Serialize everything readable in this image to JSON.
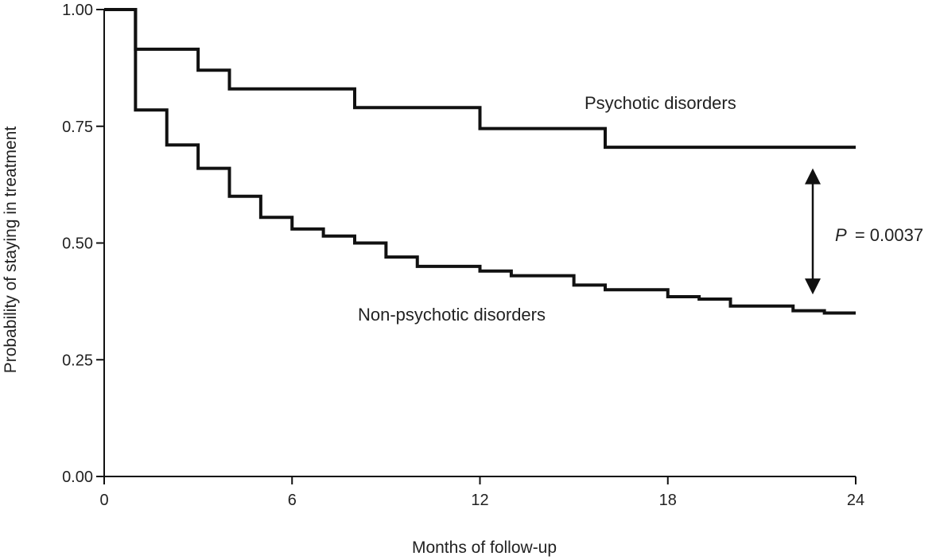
{
  "chart_data": {
    "type": "line",
    "title": "",
    "xlabel": "Months of follow-up",
    "ylabel": "Probability of staying in treatment",
    "xlim": [
      0,
      24
    ],
    "ylim": [
      0,
      1
    ],
    "x_ticks": [
      0,
      6,
      12,
      18,
      24
    ],
    "x_tick_labels": [
      "0",
      "6",
      "12",
      "18",
      "24"
    ],
    "y_ticks": [
      0,
      0.25,
      0.5,
      0.75,
      1
    ],
    "y_tick_labels": [
      "0.00",
      "0.25",
      "0.50",
      "0.75",
      "1.00"
    ],
    "grid": false,
    "step": true,
    "series": [
      {
        "name": "Psychotic disorders",
        "x": [
          0,
          1,
          3,
          4,
          8,
          12,
          16,
          24
        ],
        "y": [
          1.0,
          0.915,
          0.87,
          0.83,
          0.79,
          0.745,
          0.705,
          0.705
        ]
      },
      {
        "name": "Non-psychotic disorders",
        "x": [
          0,
          1,
          2,
          3,
          4,
          5,
          6,
          7,
          8,
          9,
          10,
          12,
          13,
          15,
          16,
          18,
          19,
          20,
          22,
          23,
          24
        ],
        "y": [
          1.0,
          0.785,
          0.71,
          0.66,
          0.6,
          0.555,
          0.53,
          0.515,
          0.5,
          0.47,
          0.45,
          0.44,
          0.43,
          0.41,
          0.4,
          0.385,
          0.38,
          0.365,
          0.355,
          0.35,
          0.35
        ]
      }
    ],
    "annotations": {
      "p_label": "P",
      "p_value": "= 0.0037",
      "arrow_y_range": [
        0.39,
        0.66
      ]
    }
  }
}
